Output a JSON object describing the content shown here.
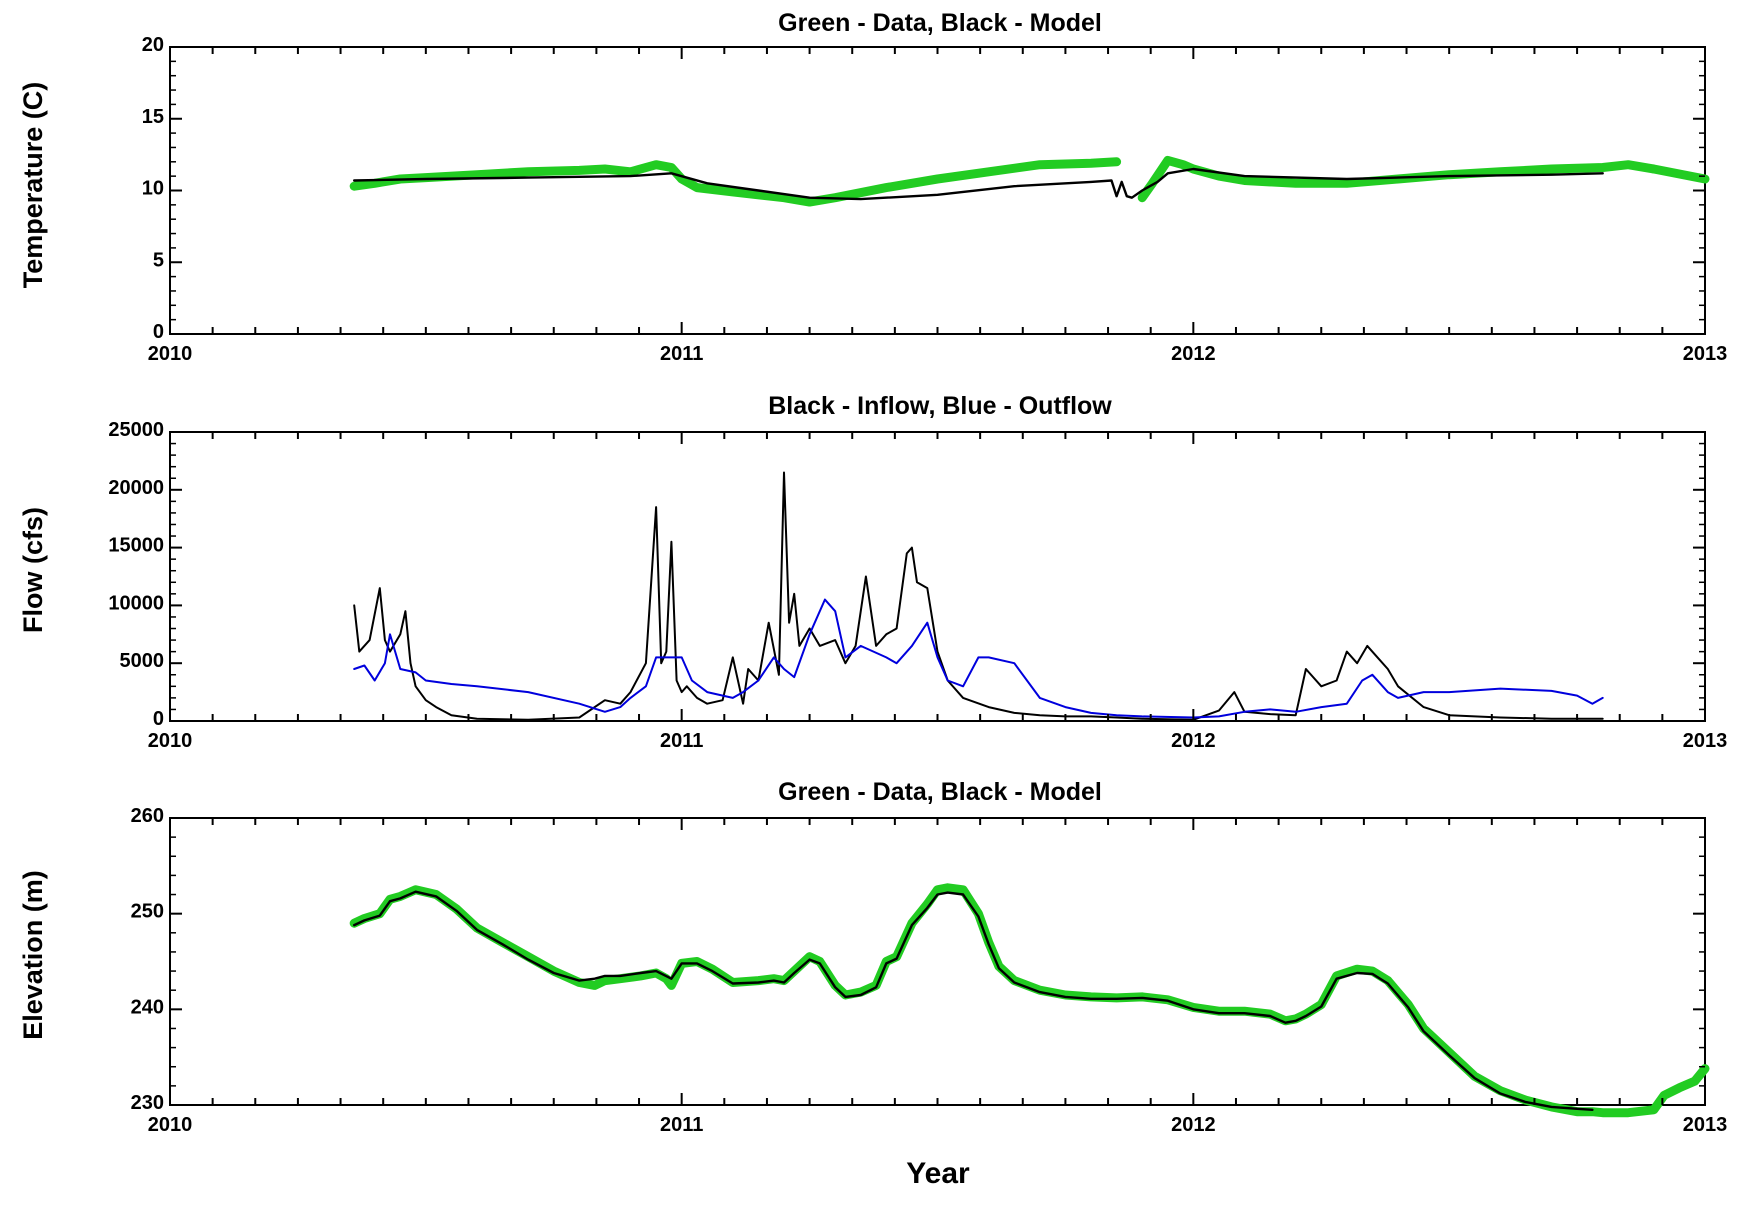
{
  "xlabel": "Year",
  "colors": {
    "data": "#22cc22",
    "model": "#000000",
    "inflow": "#000000",
    "outflow": "#0000dd"
  },
  "chart_data": [
    {
      "type": "line",
      "title": "Green - Data, Black - Model",
      "ylabel": "Temperature (C)",
      "xlim": [
        2010,
        2013
      ],
      "ylim": [
        0,
        20
      ],
      "yticks": [
        0,
        5,
        10,
        15,
        20
      ],
      "xticks": [
        2010,
        2011,
        2012,
        2013
      ],
      "series": [
        {
          "role": "data",
          "color": "#22cc22",
          "x": [
            2010.36,
            2010.4,
            2010.45,
            2010.5,
            2010.6,
            2010.7,
            2010.8,
            2010.85,
            2010.9,
            2010.95,
            2010.98,
            2011.0,
            2011.03,
            2011.1,
            2011.2,
            2011.25,
            2011.3,
            2011.4,
            2011.5,
            2011.6,
            2011.7,
            2011.8,
            2011.85
          ],
          "y": [
            10.3,
            10.5,
            10.8,
            10.9,
            11.1,
            11.3,
            11.4,
            11.5,
            11.3,
            11.8,
            11.6,
            10.8,
            10.2,
            9.9,
            9.5,
            9.2,
            9.5,
            10.2,
            10.8,
            11.3,
            11.8,
            11.9,
            12.0
          ],
          "x2": [
            2011.9,
            2011.92,
            2011.95,
            2011.98,
            2012.0,
            2012.05,
            2012.1,
            2012.2,
            2012.3,
            2012.4,
            2012.5,
            2012.6,
            2012.7,
            2012.8,
            2012.85,
            2012.9,
            2013.0
          ],
          "y2": [
            9.5,
            10.5,
            12.1,
            11.8,
            11.5,
            11.0,
            10.7,
            10.5,
            10.5,
            10.8,
            11.1,
            11.3,
            11.5,
            11.6,
            11.8,
            11.5,
            10.8
          ]
        },
        {
          "role": "model",
          "color": "#000000",
          "x": [
            2010.36,
            2010.5,
            2010.7,
            2010.9,
            2010.98,
            2011.05,
            2011.15,
            2011.25,
            2011.35,
            2011.5,
            2011.65,
            2011.8,
            2011.84,
            2011.85,
            2011.86,
            2011.87,
            2011.88,
            2011.9,
            2011.93,
            2011.95,
            2012.0,
            2012.1,
            2012.3,
            2012.5,
            2012.7,
            2012.8
          ],
          "y": [
            10.7,
            10.8,
            10.9,
            11.0,
            11.2,
            10.5,
            10.0,
            9.5,
            9.4,
            9.7,
            10.3,
            10.6,
            10.7,
            9.6,
            10.6,
            9.6,
            9.5,
            10.0,
            10.6,
            11.2,
            11.5,
            11.0,
            10.8,
            11.0,
            11.1,
            11.2
          ]
        }
      ]
    },
    {
      "type": "line",
      "title": "Black - Inflow, Blue - Outflow",
      "ylabel": "Flow (cfs)",
      "xlim": [
        2010,
        2013
      ],
      "ylim": [
        0,
        25000
      ],
      "yticks": [
        0,
        5000,
        10000,
        15000,
        20000,
        25000
      ],
      "xticks": [
        2010,
        2011,
        2012,
        2013
      ],
      "series": [
        {
          "role": "inflow",
          "color": "#000000",
          "x": [
            2010.36,
            2010.37,
            2010.39,
            2010.41,
            2010.42,
            2010.43,
            2010.45,
            2010.46,
            2010.47,
            2010.48,
            2010.5,
            2010.52,
            2010.55,
            2010.6,
            2010.7,
            2010.8,
            2010.85,
            2010.88,
            2010.9,
            2010.93,
            2010.95,
            2010.96,
            2010.97,
            2010.98,
            2010.99,
            2011.0,
            2011.01,
            2011.02,
            2011.03,
            2011.05,
            2011.08,
            2011.1,
            2011.12,
            2011.13,
            2011.15,
            2011.17,
            2011.19,
            2011.2,
            2011.21,
            2011.22,
            2011.23,
            2011.25,
            2011.27,
            2011.3,
            2011.32,
            2011.34,
            2011.36,
            2011.38,
            2011.4,
            2011.42,
            2011.44,
            2011.45,
            2011.46,
            2011.48,
            2011.5,
            2011.52,
            2011.55,
            2011.6,
            2011.65,
            2011.7,
            2011.75,
            2011.8,
            2011.85,
            2011.9,
            2011.95,
            2012.0,
            2012.05,
            2012.08,
            2012.1,
            2012.15,
            2012.2,
            2012.21,
            2012.22,
            2012.25,
            2012.28,
            2012.3,
            2012.32,
            2012.34,
            2012.36,
            2012.38,
            2012.4,
            2012.45,
            2012.5,
            2012.6,
            2012.7,
            2012.8
          ],
          "y": [
            10000,
            6000,
            7000,
            11500,
            7000,
            6000,
            7500,
            9500,
            5000,
            3000,
            1800,
            1200,
            500,
            200,
            100,
            300,
            1800,
            1500,
            2500,
            5000,
            18500,
            5000,
            6000,
            15500,
            3500,
            2500,
            3000,
            2500,
            2000,
            1500,
            1800,
            5500,
            1500,
            4500,
            3500,
            8500,
            4000,
            21500,
            8500,
            11000,
            6500,
            8000,
            6500,
            7000,
            5000,
            6500,
            12500,
            6500,
            7500,
            8000,
            14500,
            15000,
            12000,
            11500,
            6000,
            3500,
            2000,
            1200,
            700,
            500,
            400,
            400,
            300,
            200,
            150,
            100,
            900,
            2500,
            800,
            600,
            500,
            2500,
            4500,
            3000,
            3500,
            6000,
            5000,
            6500,
            5500,
            4500,
            3000,
            1200,
            500,
            300,
            200,
            200
          ]
        },
        {
          "role": "outflow",
          "color": "#0000dd",
          "x": [
            2010.36,
            2010.38,
            2010.4,
            2010.42,
            2010.43,
            2010.45,
            2010.48,
            2010.5,
            2010.55,
            2010.6,
            2010.7,
            2010.8,
            2010.85,
            2010.88,
            2010.9,
            2010.93,
            2010.95,
            2011.0,
            2011.02,
            2011.05,
            2011.1,
            2011.12,
            2011.15,
            2011.18,
            2011.2,
            2011.22,
            2011.25,
            2011.28,
            2011.3,
            2011.32,
            2011.35,
            2011.4,
            2011.42,
            2011.45,
            2011.48,
            2011.5,
            2011.52,
            2011.55,
            2011.58,
            2011.6,
            2011.65,
            2011.7,
            2011.75,
            2011.8,
            2011.85,
            2011.9,
            2012.0,
            2012.05,
            2012.1,
            2012.15,
            2012.2,
            2012.25,
            2012.3,
            2012.33,
            2012.35,
            2012.38,
            2012.4,
            2012.45,
            2012.5,
            2012.6,
            2012.7,
            2012.75,
            2012.78,
            2012.8
          ],
          "y": [
            4500,
            4800,
            3500,
            5000,
            7500,
            4500,
            4200,
            3500,
            3200,
            3000,
            2500,
            1500,
            800,
            1200,
            2000,
            3000,
            5500,
            5500,
            3500,
            2500,
            2000,
            2500,
            3500,
            5500,
            4500,
            3800,
            7500,
            10500,
            9500,
            5500,
            6500,
            5500,
            5000,
            6500,
            8500,
            5500,
            3500,
            3000,
            5500,
            5500,
            5000,
            2000,
            1200,
            700,
            500,
            400,
            300,
            400,
            800,
            1000,
            800,
            1200,
            1500,
            3500,
            4000,
            2500,
            2000,
            2500,
            2500,
            2800,
            2600,
            2200,
            1500,
            2000
          ]
        }
      ]
    },
    {
      "type": "line",
      "title": "Green - Data, Black - Model",
      "ylabel": "Elevation (m)",
      "xlim": [
        2010,
        2013
      ],
      "ylim": [
        230,
        260
      ],
      "yticks": [
        230,
        240,
        250,
        260
      ],
      "xticks": [
        2010,
        2011,
        2012,
        2013
      ],
      "series": [
        {
          "role": "data",
          "color": "#22cc22",
          "x": [
            2010.36,
            2010.38,
            2010.41,
            2010.43,
            2010.45,
            2010.48,
            2010.52,
            2010.56,
            2010.6,
            2010.65,
            2010.7,
            2010.75,
            2010.8,
            2010.83,
            2010.85,
            2010.88,
            2010.92,
            2010.95,
            2010.97,
            2010.98,
            2011.0,
            2011.03,
            2011.06,
            2011.1,
            2011.15,
            2011.18,
            2011.2,
            2011.22,
            2011.25,
            2011.27,
            2011.3,
            2011.32,
            2011.35,
            2011.38,
            2011.4,
            2011.42,
            2011.45,
            2011.48,
            2011.5,
            2011.52,
            2011.55,
            2011.58,
            2011.6,
            2011.62,
            2011.65,
            2011.7,
            2011.75,
            2011.8,
            2011.85,
            2011.9,
            2011.95,
            2012.0,
            2012.05,
            2012.1,
            2012.15,
            2012.18,
            2012.2,
            2012.22,
            2012.25,
            2012.28,
            2012.32,
            2012.35,
            2012.38,
            2012.42,
            2012.45,
            2012.5,
            2012.55,
            2012.6,
            2012.65,
            2012.7,
            2012.75,
            2012.78,
            2012.8,
            2012.85,
            2012.9,
            2012.92,
            2012.95,
            2012.98,
            2013.0
          ],
          "y": [
            249,
            249.5,
            250,
            251.5,
            251.8,
            252.5,
            252,
            250.5,
            248.5,
            247,
            245.5,
            244,
            242.8,
            242.5,
            243,
            243.2,
            243.5,
            243.8,
            243.2,
            242.5,
            244.8,
            245,
            244.2,
            242.8,
            243,
            243.2,
            243,
            244,
            245.5,
            245,
            242.5,
            241.5,
            241.8,
            242.5,
            245,
            245.5,
            249,
            251,
            252.5,
            252.7,
            252.5,
            250,
            247,
            244.5,
            243,
            242,
            241.5,
            241.3,
            241.2,
            241.3,
            241,
            240.2,
            239.8,
            239.8,
            239.5,
            238.8,
            239,
            239.5,
            240.5,
            243.5,
            244.2,
            244,
            243,
            240.5,
            238,
            235.5,
            233,
            231.5,
            230.5,
            229.8,
            229.3,
            229.3,
            229.2,
            229.2,
            229.5,
            231,
            231.8,
            232.5,
            233.8
          ]
        },
        {
          "role": "model",
          "color": "#000000",
          "x": [
            2010.36,
            2010.38,
            2010.41,
            2010.43,
            2010.45,
            2010.48,
            2010.52,
            2010.56,
            2010.6,
            2010.65,
            2010.7,
            2010.75,
            2010.8,
            2010.83,
            2010.85,
            2010.88,
            2010.92,
            2010.95,
            2010.98,
            2011.0,
            2011.03,
            2011.06,
            2011.1,
            2011.15,
            2011.18,
            2011.2,
            2011.22,
            2011.25,
            2011.27,
            2011.3,
            2011.32,
            2011.35,
            2011.38,
            2011.4,
            2011.42,
            2011.45,
            2011.48,
            2011.5,
            2011.52,
            2011.55,
            2011.58,
            2011.6,
            2011.62,
            2011.65,
            2011.7,
            2011.75,
            2011.8,
            2011.85,
            2011.9,
            2011.95,
            2012.0,
            2012.05,
            2012.1,
            2012.15,
            2012.18,
            2012.2,
            2012.22,
            2012.25,
            2012.28,
            2012.32,
            2012.35,
            2012.38,
            2012.42,
            2012.45,
            2012.5,
            2012.55,
            2012.6,
            2012.65,
            2012.7,
            2012.75,
            2012.78
          ],
          "y": [
            248.8,
            249.3,
            249.8,
            251.3,
            251.6,
            252.3,
            251.8,
            250.3,
            248.3,
            246.8,
            245.2,
            243.8,
            243,
            243.2,
            243.5,
            243.5,
            243.8,
            244,
            243.2,
            244.8,
            244.8,
            244,
            242.7,
            242.8,
            243,
            242.8,
            243.8,
            245.2,
            244.8,
            242.3,
            241.3,
            241.5,
            242.3,
            244.8,
            245.3,
            248.8,
            250.6,
            252,
            252.2,
            252,
            249.7,
            246.8,
            244.3,
            242.8,
            241.8,
            241.3,
            241.1,
            241.1,
            241.2,
            240.9,
            240,
            239.6,
            239.6,
            239.3,
            238.6,
            238.8,
            239.3,
            240.3,
            243.2,
            243.8,
            243.7,
            242.7,
            240.2,
            237.7,
            235.2,
            232.8,
            231.2,
            230.3,
            229.8,
            229.6,
            229.5
          ]
        }
      ]
    }
  ]
}
